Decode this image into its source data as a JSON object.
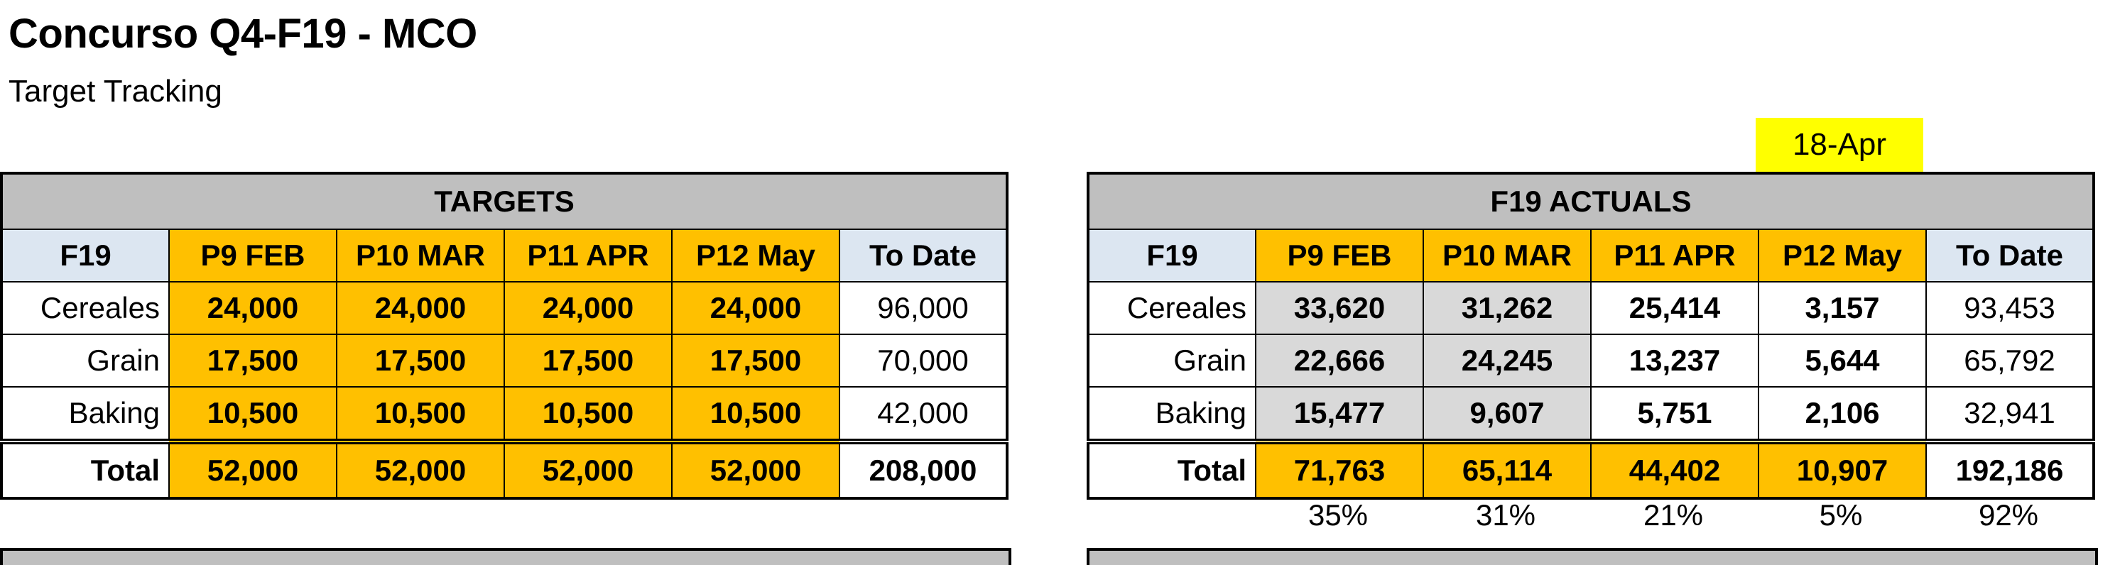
{
  "header": {
    "title": "Concurso Q4-F19 - MCO",
    "subtitle": "Target Tracking",
    "date": "18-Apr"
  },
  "targets": {
    "title": "TARGETS",
    "columns": [
      "F19",
      "P9 FEB",
      "P10 MAR",
      "P11 APR",
      "P12 May",
      "To Date"
    ],
    "rows": [
      {
        "label": "Cereales",
        "values": [
          "24,000",
          "24,000",
          "24,000",
          "24,000",
          "96,000"
        ]
      },
      {
        "label": "Grain",
        "values": [
          "17,500",
          "17,500",
          "17,500",
          "17,500",
          "70,000"
        ]
      },
      {
        "label": "Baking",
        "values": [
          "10,500",
          "10,500",
          "10,500",
          "10,500",
          "42,000"
        ]
      }
    ],
    "total": {
      "label": "Total",
      "values": [
        "52,000",
        "52,000",
        "52,000",
        "52,000",
        "208,000"
      ]
    }
  },
  "actuals": {
    "title": "F19 ACTUALS",
    "columns": [
      "F19",
      "P9 FEB",
      "P10 MAR",
      "P11 APR",
      "P12 May",
      "To Date"
    ],
    "rows": [
      {
        "label": "Cereales",
        "values": [
          "33,620",
          "31,262",
          "25,414",
          "3,157",
          "93,453"
        ]
      },
      {
        "label": "Grain",
        "values": [
          "22,666",
          "24,245",
          "13,237",
          "5,644",
          "65,792"
        ]
      },
      {
        "label": "Baking",
        "values": [
          "15,477",
          "9,607",
          "5,751",
          "2,106",
          "32,941"
        ]
      }
    ],
    "total": {
      "label": "Total",
      "values": [
        "71,763",
        "65,114",
        "44,402",
        "10,907",
        "192,186"
      ]
    },
    "percentages": [
      "35%",
      "31%",
      "21%",
      "5%",
      "92%"
    ]
  },
  "colors": {
    "header_gray": "#bfbfbf",
    "orange": "#ffc000",
    "light_blue": "#dce6f1",
    "cell_gray": "#d9d9d9",
    "badge_yellow": "#ffff00"
  }
}
